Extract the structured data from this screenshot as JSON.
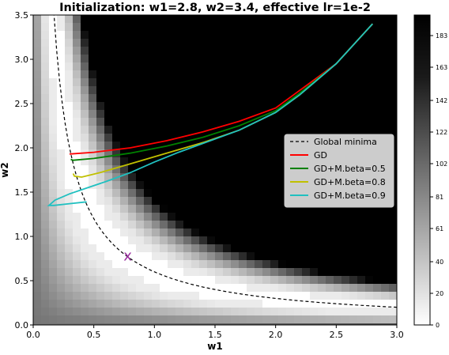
{
  "chart_data": {
    "type": "line",
    "title": "Initialization: w1=2.8, w2=3.4, effective lr=1e-2",
    "xlabel": "w1",
    "ylabel": "w2",
    "xlim": [
      0.0,
      3.0
    ],
    "ylim": [
      0.0,
      3.5
    ],
    "xticks": [
      "0.0",
      "0.5",
      "1.0",
      "1.5",
      "2.0",
      "2.5",
      "3.0"
    ],
    "yticks": [
      "0.0",
      "0.5",
      "1.0",
      "1.5",
      "2.0",
      "2.5",
      "3.0",
      "3.5"
    ],
    "background": {
      "type": "heatmap",
      "colormap": "gray_r",
      "description": "loss surface, darker = higher loss"
    },
    "colorbar": {
      "ticks": [
        "0",
        "20",
        "40",
        "61",
        "81",
        "102",
        "122",
        "142",
        "163",
        "183"
      ],
      "range": [
        0,
        196
      ]
    },
    "legend": {
      "placement": "right",
      "entries": [
        "Global minima",
        "GD",
        "GD+M.beta=0.5",
        "GD+M.beta=0.8",
        "GD+M.beta=0.9"
      ]
    },
    "marker": {
      "label": "x",
      "w1": 0.78,
      "w2": 0.78,
      "color": "#9b30a0"
    },
    "series": [
      {
        "name": "Global minima",
        "style": "dashed",
        "color": "#000000",
        "function": "w1*w2=0.6",
        "x_range": [
          0.17,
          3.0
        ]
      },
      {
        "name": "GD",
        "color": "#ff0000",
        "x": [
          2.8,
          2.5,
          2.2,
          2.0,
          1.7,
          1.4,
          1.1,
          0.8,
          0.5,
          0.3
        ],
        "y": [
          3.4,
          2.95,
          2.65,
          2.45,
          2.3,
          2.18,
          2.08,
          2.0,
          1.95,
          1.93
        ]
      },
      {
        "name": "GD+M.beta=0.5",
        "color": "#008000",
        "x": [
          2.8,
          2.5,
          2.2,
          2.0,
          1.7,
          1.4,
          1.1,
          0.8,
          0.5,
          0.33,
          0.31
        ],
        "y": [
          3.4,
          2.95,
          2.62,
          2.42,
          2.25,
          2.12,
          2.02,
          1.94,
          1.88,
          1.86,
          1.87
        ]
      },
      {
        "name": "GD+M.beta=0.8",
        "color": "#c0c000",
        "x": [
          2.8,
          2.5,
          2.2,
          2.0,
          1.7,
          1.4,
          1.1,
          0.8,
          0.55,
          0.4,
          0.34,
          0.33
        ],
        "y": [
          3.4,
          2.95,
          2.6,
          2.4,
          2.2,
          2.06,
          1.94,
          1.82,
          1.72,
          1.67,
          1.68,
          1.71
        ]
      },
      {
        "name": "GD+M.beta=0.9",
        "color": "#20c0c0",
        "x": [
          2.8,
          2.5,
          2.2,
          2.0,
          1.7,
          1.4,
          1.2,
          1.0,
          0.8,
          0.6,
          0.45,
          0.3,
          0.18,
          0.13,
          0.17,
          0.3,
          0.44
        ],
        "y": [
          3.4,
          2.95,
          2.6,
          2.4,
          2.2,
          2.05,
          1.95,
          1.84,
          1.72,
          1.62,
          1.55,
          1.48,
          1.41,
          1.35,
          1.35,
          1.37,
          1.39
        ]
      }
    ]
  }
}
